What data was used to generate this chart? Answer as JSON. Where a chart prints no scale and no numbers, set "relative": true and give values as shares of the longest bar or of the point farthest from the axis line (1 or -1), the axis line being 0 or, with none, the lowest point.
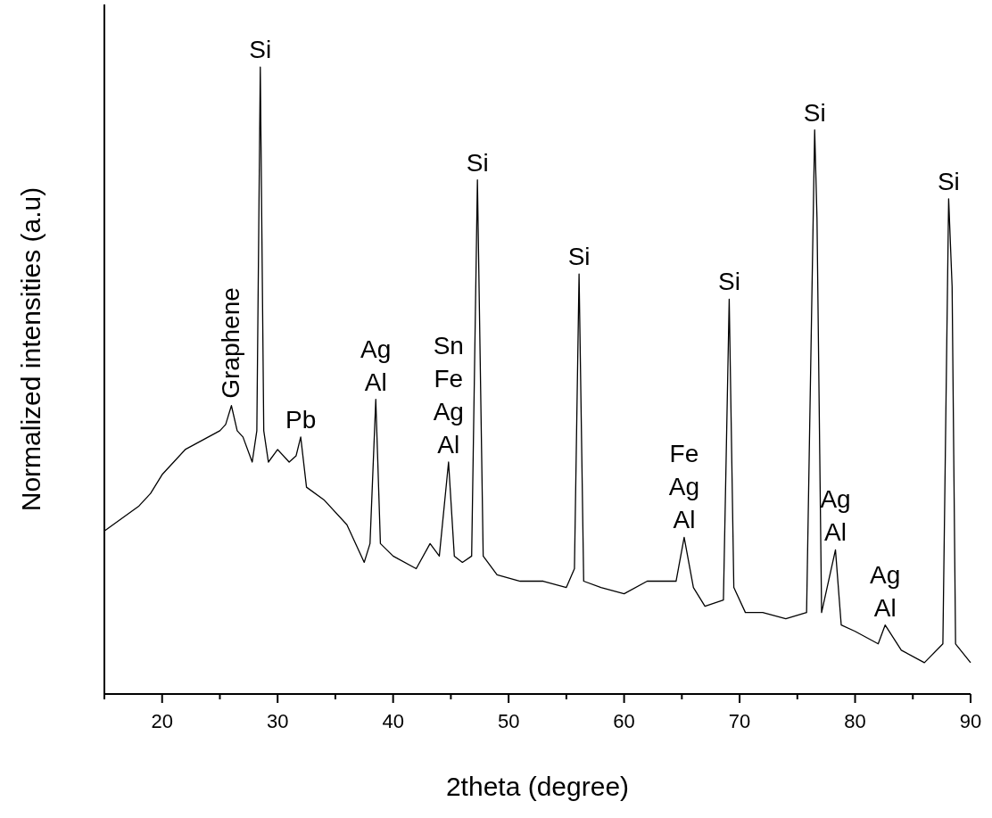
{
  "chart_data": {
    "type": "line",
    "xlabel": "2theta (degree)",
    "ylabel": "Normalized intensities (a.u)",
    "relative": true,
    "color": "#000000",
    "x": [
      15,
      16.5,
      18,
      19,
      20,
      21,
      22,
      23,
      24,
      25,
      25.5,
      26,
      26.5,
      27,
      27.8,
      28.2,
      28.5,
      28.8,
      29.2,
      30,
      31,
      31.6,
      32,
      32.5,
      34,
      36,
      37.5,
      38,
      38.5,
      38.9,
      40,
      42,
      43.2,
      44,
      44.8,
      45.3,
      46,
      46.8,
      47.3,
      47.8,
      49,
      51,
      53,
      55,
      55.7,
      56.1,
      56.5,
      58,
      60,
      62,
      63,
      64.5,
      65.2,
      66,
      67,
      68.6,
      69.1,
      69.5,
      70.5,
      72,
      74,
      75.8,
      76.5,
      76.7,
      77.1,
      78.3,
      78.8,
      80,
      82,
      82.6,
      84,
      86,
      87.6,
      88.1,
      88.4,
      88.7,
      90
    ],
    "values": [
      0.26,
      0.28,
      0.3,
      0.32,
      0.35,
      0.37,
      0.39,
      0.4,
      0.41,
      0.42,
      0.43,
      0.46,
      0.42,
      0.41,
      0.37,
      0.42,
      1.0,
      0.42,
      0.37,
      0.39,
      0.37,
      0.38,
      0.41,
      0.33,
      0.31,
      0.27,
      0.21,
      0.24,
      0.47,
      0.24,
      0.22,
      0.2,
      0.24,
      0.22,
      0.37,
      0.22,
      0.21,
      0.22,
      0.82,
      0.22,
      0.19,
      0.18,
      0.18,
      0.17,
      0.2,
      0.67,
      0.18,
      0.17,
      0.16,
      0.18,
      0.18,
      0.18,
      0.25,
      0.17,
      0.14,
      0.15,
      0.63,
      0.17,
      0.13,
      0.13,
      0.12,
      0.13,
      0.9,
      0.76,
      0.13,
      0.23,
      0.11,
      0.1,
      0.08,
      0.11,
      0.07,
      0.05,
      0.08,
      0.79,
      0.65,
      0.08,
      0.05
    ],
    "xlim": [
      15,
      90
    ],
    "xticks": [
      {
        "value": 15,
        "label": null
      },
      20,
      {
        "value": 25,
        "label": null
      },
      30,
      {
        "value": 35,
        "label": null
      },
      40,
      {
        "value": 45,
        "label": null
      },
      50,
      {
        "value": 55,
        "label": null
      },
      60,
      {
        "value": 65,
        "label": null
      },
      70,
      {
        "value": 75,
        "label": null
      },
      80,
      {
        "value": 85,
        "label": null
      },
      90
    ],
    "annotations": [
      {
        "text": "Si",
        "x": 28.5,
        "y": 1.0
      },
      {
        "text": "Graphene",
        "x": 26,
        "y": 0.46
      },
      {
        "text": "Pb",
        "x": 32,
        "y": 0.41
      },
      {
        "text": "Ag\nAl",
        "x": 38.5,
        "y": 0.47
      },
      {
        "text": "Sn\nFe\nAg\nAl",
        "x": 44.8,
        "y": 0.37
      },
      {
        "text": "Si",
        "x": 47.3,
        "y": 0.82
      },
      {
        "text": "Si",
        "x": 56.1,
        "y": 0.67
      },
      {
        "text": "Fe\nAg\nAl",
        "x": 65.2,
        "y": 0.25
      },
      {
        "text": "Si",
        "x": 69.1,
        "y": 0.63
      },
      {
        "text": "Si",
        "x": 76.5,
        "y": 0.9
      },
      {
        "text": "Ag\nAl",
        "x": 78.3,
        "y": 0.23
      },
      {
        "text": "Ag\nAl",
        "x": 82.6,
        "y": 0.11
      },
      {
        "text": "Si",
        "x": 88.1,
        "y": 0.79
      }
    ]
  }
}
